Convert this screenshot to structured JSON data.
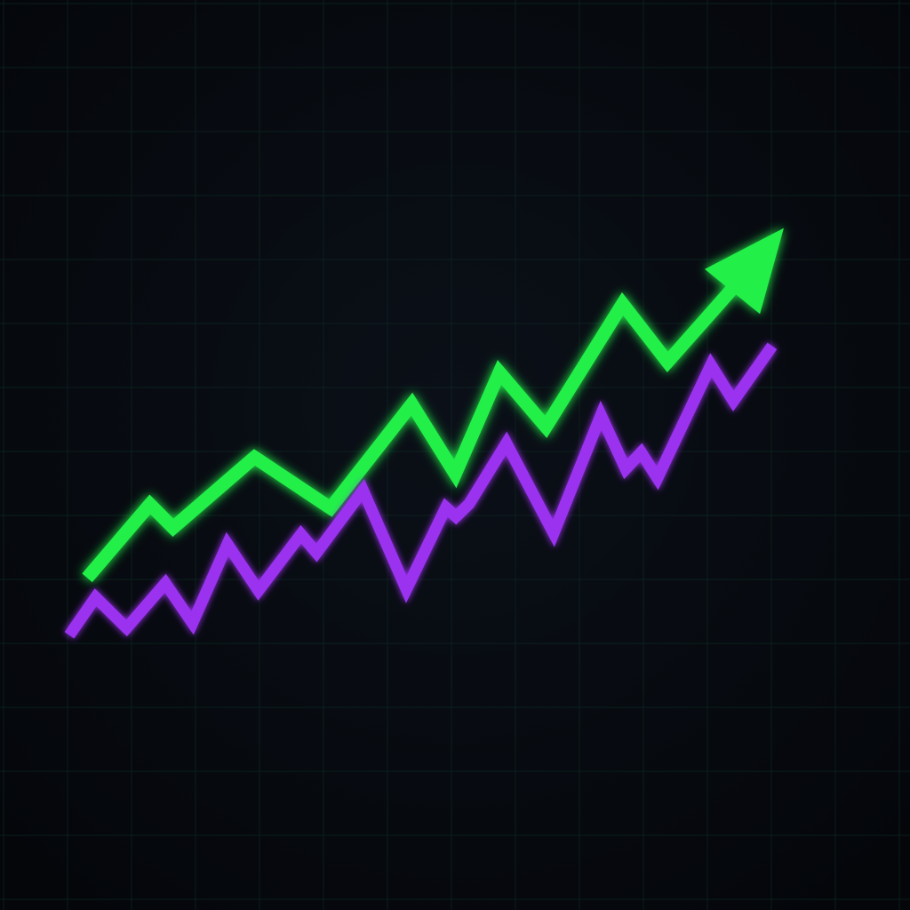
{
  "chart_data": {
    "type": "line",
    "title": "",
    "xlabel": "",
    "ylabel": "",
    "grid": true,
    "background_color": "#070a10",
    "grid_color": "#0f2a26",
    "xlim": [
      0,
      100
    ],
    "ylim": [
      0,
      100
    ],
    "series": [
      {
        "color": "#22f04a",
        "arrowhead": true,
        "points": [
          [
            2.3,
            27.3
          ],
          [
            10.4,
            39.3
          ],
          [
            13.4,
            35.5
          ],
          [
            23.9,
            47.0
          ],
          [
            33.7,
            38.7
          ],
          [
            44.2,
            55.7
          ],
          [
            49.8,
            44.3
          ],
          [
            55.5,
            60.9
          ],
          [
            61.5,
            52.0
          ],
          [
            71.4,
            72.1
          ],
          [
            77.2,
            62.6
          ],
          [
            89.0,
            79.5
          ],
          [
            92.2,
            84.5
          ]
        ]
      },
      {
        "color": "#9b30f0",
        "arrowhead": false,
        "points": [
          [
            0.0,
            17.9
          ],
          [
            3.4,
            24.1
          ],
          [
            7.4,
            19.1
          ],
          [
            12.4,
            26.4
          ],
          [
            15.9,
            19.9
          ],
          [
            20.4,
            32.8
          ],
          [
            24.4,
            25.2
          ],
          [
            29.9,
            34.4
          ],
          [
            31.9,
            31.4
          ],
          [
            37.9,
            41.6
          ],
          [
            43.5,
            25.4
          ],
          [
            48.6,
            38.8
          ],
          [
            49.9,
            37.3
          ],
          [
            51.6,
            39.4
          ],
          [
            56.4,
            49.3
          ],
          [
            62.5,
            34.6
          ],
          [
            68.6,
            53.9
          ],
          [
            71.8,
            45.1
          ],
          [
            73.8,
            47.8
          ],
          [
            75.9,
            43.6
          ],
          [
            82.8,
            62.1
          ],
          [
            85.7,
            56.2
          ],
          [
            90.7,
            65.2
          ]
        ]
      }
    ]
  }
}
